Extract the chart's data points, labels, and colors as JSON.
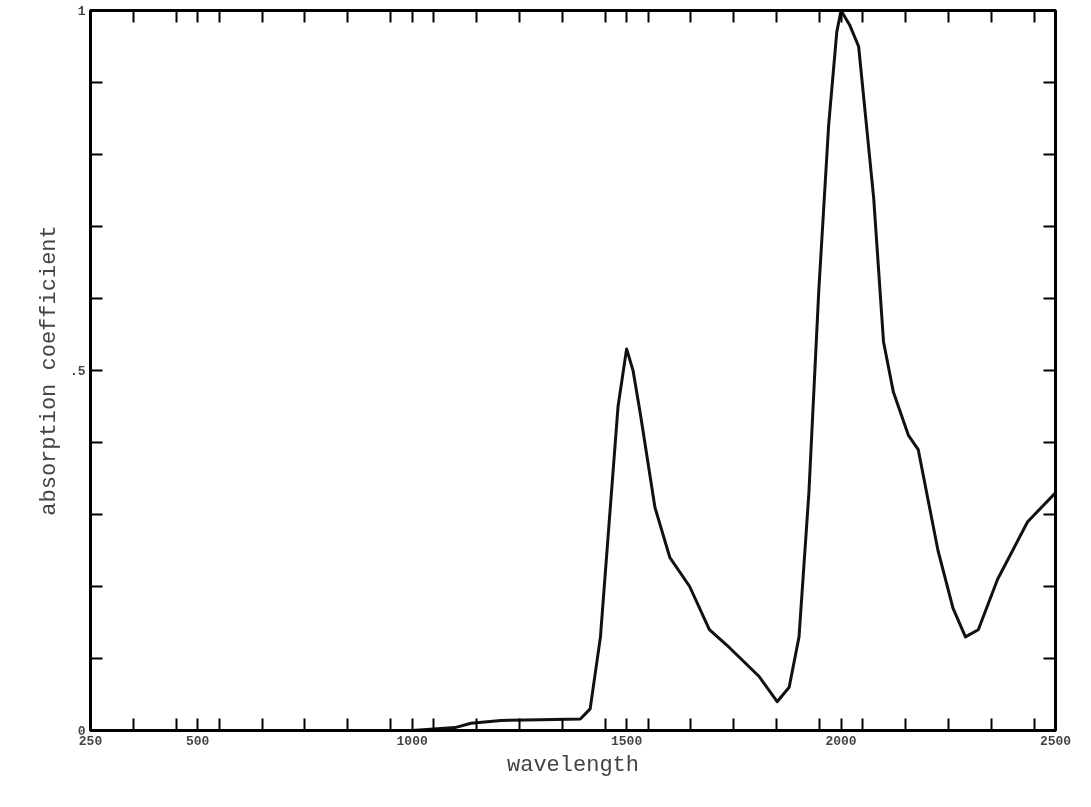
{
  "chart_data": {
    "type": "line",
    "xlabel": "wavelength",
    "ylabel": "absorption coefficient",
    "x": [
      250,
      600,
      1000,
      1100,
      1137,
      1207,
      1300,
      1392,
      1415,
      1439,
      1462,
      1480,
      1500,
      1515,
      1532,
      1566,
      1601,
      1647,
      1693,
      1740,
      1809,
      1851,
      1879,
      1902,
      1925,
      1948,
      1971,
      1990,
      2000,
      2020,
      2041,
      2076,
      2099,
      2122,
      2157,
      2180,
      2226,
      2261,
      2290,
      2320,
      2365,
      2435,
      2500
    ],
    "series": [
      {
        "color": "#111111",
        "values": [
          0,
          0,
          0,
          0.004,
          0.01,
          0.014,
          0.015,
          0.016,
          0.03,
          0.13,
          0.31,
          0.45,
          0.53,
          0.5,
          0.44,
          0.31,
          0.24,
          0.2,
          0.14,
          0.115,
          0.075,
          0.04,
          0.06,
          0.13,
          0.33,
          0.61,
          0.84,
          0.97,
          1.0,
          0.98,
          0.95,
          0.74,
          0.54,
          0.47,
          0.41,
          0.39,
          0.25,
          0.17,
          0.13,
          0.14,
          0.21,
          0.29,
          0.33
        ]
      }
    ],
    "xlim": [
      250,
      2500
    ],
    "ylim": [
      0,
      1
    ],
    "xticks": [
      250,
      {
        "value": 350,
        "label": null
      },
      {
        "value": 450,
        "label": null
      },
      500,
      {
        "value": 550,
        "label": null
      },
      {
        "value": 650,
        "label": null
      },
      {
        "value": 750,
        "label": null
      },
      {
        "value": 850,
        "label": null
      },
      {
        "value": 950,
        "label": null
      },
      1000,
      {
        "value": 1050,
        "label": null
      },
      {
        "value": 1150,
        "label": null
      },
      {
        "value": 1250,
        "label": null
      },
      {
        "value": 1350,
        "label": null
      },
      {
        "value": 1450,
        "label": null
      },
      1500,
      {
        "value": 1550,
        "label": null
      },
      {
        "value": 1650,
        "label": null
      },
      {
        "value": 1750,
        "label": null
      },
      {
        "value": 1850,
        "label": null
      },
      {
        "value": 1950,
        "label": null
      },
      2000,
      {
        "value": 2050,
        "label": null
      },
      {
        "value": 2150,
        "label": null
      },
      {
        "value": 2250,
        "label": null
      },
      {
        "value": 2350,
        "label": null
      },
      {
        "value": 2450,
        "label": null
      },
      2500
    ],
    "yticks": [
      0,
      {
        "value": 0.1,
        "label": null
      },
      {
        "value": 0.2,
        "label": null
      },
      {
        "value": 0.3,
        "label": null
      },
      {
        "value": 0.4,
        "label": null
      },
      {
        "value": 0.5,
        "label": ".5"
      },
      {
        "value": 0.6,
        "label": null
      },
      {
        "value": 0.7,
        "label": null
      },
      {
        "value": 0.8,
        "label": null
      },
      {
        "value": 0.9,
        "label": null
      },
      1
    ],
    "grid": false,
    "line_style": "solid",
    "marker": "none"
  }
}
